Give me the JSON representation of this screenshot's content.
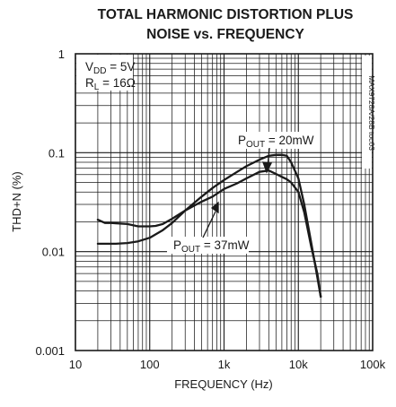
{
  "chart_data": {
    "type": "line",
    "title": [
      "TOTAL HARMONIC DISTORTION PLUS",
      "NOISE vs. FREQUENCY"
    ],
    "xlabel": "FREQUENCY (Hz)",
    "ylabel": "THD+N (%)",
    "x_scale": "log",
    "y_scale": "log",
    "xlim": [
      10,
      100000
    ],
    "ylim": [
      0.001,
      1
    ],
    "x_ticks": [
      "10",
      "100",
      "1k",
      "10k",
      "100k"
    ],
    "y_ticks": [
      "1",
      "0.1",
      "0.01",
      "0.001"
    ],
    "grid": true,
    "conditions": {
      "vdd_label": "V",
      "vdd_sub": "DD",
      "vdd_value": " = 5V",
      "rl_label": "R",
      "rl_sub": "L",
      "rl_value": " = 16Ω"
    },
    "side_text": "MAX9728A/28B toc03",
    "annotations": [
      {
        "text_main": "P",
        "text_sub": "OUT",
        "text_value": " = 20mW"
      },
      {
        "text_main": "P",
        "text_sub": "OUT",
        "text_value": " = 37mW"
      }
    ],
    "series": [
      {
        "name": "POUT = 20mW",
        "x": [
          20,
          25,
          35,
          50,
          70,
          100,
          150,
          200,
          300,
          500,
          700,
          1000,
          1500,
          2000,
          3000,
          4000,
          5000,
          6000,
          7000,
          8000,
          10000,
          12000,
          15000,
          18000,
          20000
        ],
        "y": [
          0.012,
          0.012,
          0.012,
          0.0122,
          0.0127,
          0.0138,
          0.0165,
          0.0195,
          0.026,
          0.036,
          0.044,
          0.053,
          0.064,
          0.073,
          0.085,
          0.093,
          0.095,
          0.095,
          0.093,
          0.08,
          0.055,
          0.03,
          0.012,
          0.0055,
          0.0035
        ]
      },
      {
        "name": "POUT = 37mW",
        "x": [
          20,
          25,
          30,
          50,
          70,
          100,
          120,
          150,
          200,
          300,
          500,
          700,
          1000,
          1500,
          2000,
          3000,
          4000,
          5000,
          6000,
          7000,
          8000,
          10000,
          12000,
          15000,
          18000,
          20000
        ],
        "y": [
          0.021,
          0.0195,
          0.0195,
          0.019,
          0.018,
          0.018,
          0.0182,
          0.019,
          0.0215,
          0.026,
          0.032,
          0.036,
          0.043,
          0.049,
          0.055,
          0.064,
          0.066,
          0.061,
          0.057,
          0.054,
          0.05,
          0.04,
          0.025,
          0.011,
          0.006,
          0.0035
        ]
      }
    ]
  }
}
